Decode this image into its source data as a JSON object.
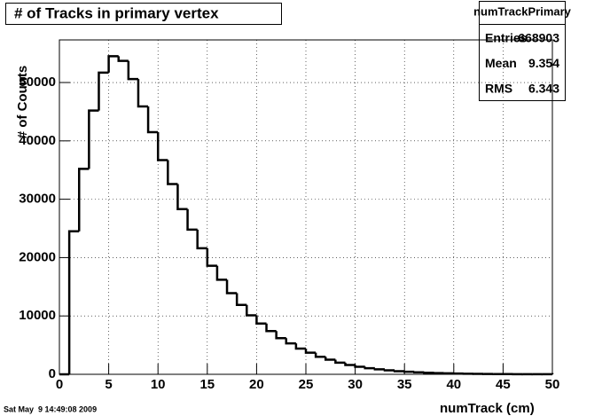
{
  "chart_data": {
    "type": "histogram",
    "title": "# of Tracks in primary vertex",
    "x_label": "numTrack (cm)",
    "y_label": "# of Counts",
    "bins": [
      0,
      1,
      2,
      3,
      4,
      5,
      6,
      7,
      8,
      9,
      10,
      11,
      12,
      13,
      14,
      15,
      16,
      17,
      18,
      19,
      20,
      21,
      22,
      23,
      24,
      25,
      26,
      27,
      28,
      29,
      30,
      31,
      32,
      33,
      34,
      35,
      36,
      37,
      38,
      39,
      40,
      41,
      42,
      43,
      44,
      45,
      46,
      47,
      48,
      49,
      50
    ],
    "counts": [
      0,
      24500,
      35200,
      45200,
      51700,
      54500,
      53700,
      50600,
      45900,
      41500,
      36700,
      32600,
      28300,
      24800,
      21600,
      18600,
      16200,
      13900,
      11900,
      10100,
      8700,
      7400,
      6200,
      5300,
      4400,
      3700,
      3000,
      2500,
      2000,
      1600,
      1300,
      1050,
      850,
      680,
      540,
      430,
      340,
      270,
      210,
      170,
      130,
      100,
      80,
      60,
      45,
      35,
      25,
      20,
      15,
      10
    ],
    "color": "#000000",
    "xlim": [
      0,
      50
    ],
    "xticks": [
      0,
      5,
      10,
      15,
      20,
      25,
      30,
      35,
      40,
      45,
      50
    ],
    "ylim": [
      0,
      57300
    ],
    "yticks": [
      0,
      10000,
      20000,
      30000,
      40000,
      50000
    ],
    "grid": true,
    "stats": {
      "title": "numTrackPrimary",
      "rows": [
        [
          "Entries",
          668903
        ],
        [
          "Mean",
          9.354
        ],
        [
          "RMS",
          6.343
        ]
      ]
    },
    "timestamp": "Sat May  9 14:49:08 2009"
  }
}
